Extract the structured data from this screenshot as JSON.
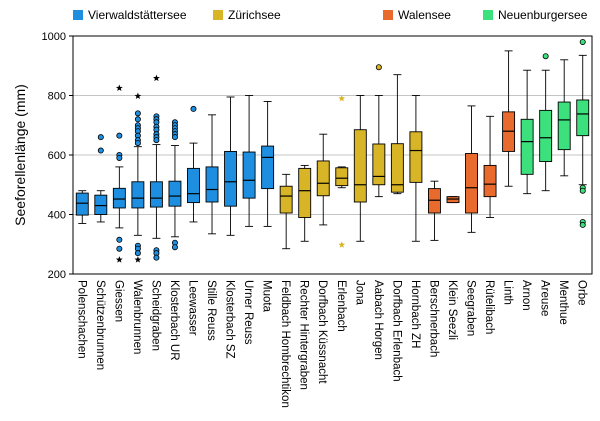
{
  "chart_data": {
    "type": "boxplot",
    "title": "",
    "xlabel": "",
    "ylabel": "Seeforellenlänge (mm)",
    "ylim": [
      200,
      1000
    ],
    "yticks": [
      200,
      400,
      600,
      800,
      1000
    ],
    "grid": true,
    "legend_position": "top",
    "groups": [
      {
        "name": "Vierwaldstättersee",
        "color": "#1e8fe0"
      },
      {
        "name": "Zürichsee",
        "color": "#d8b526"
      },
      {
        "name": "Walensee",
        "color": "#e86a2d"
      },
      {
        "name": "Neuenburgersee",
        "color": "#3ce07c"
      }
    ],
    "boxes": [
      {
        "label": "Polenschachen",
        "group": "Vierwaldstättersee",
        "whisker_low": 370,
        "q1": 398,
        "median": 438,
        "q3": 472,
        "whisker_high": 480,
        "outliers": [],
        "extremes": []
      },
      {
        "label": "Schützenbrunnen",
        "group": "Vierwaldstättersee",
        "whisker_low": 375,
        "q1": 400,
        "median": 430,
        "q3": 465,
        "whisker_high": 480,
        "outliers": [
          660,
          615
        ],
        "extremes": []
      },
      {
        "label": "Giessen",
        "group": "Vierwaldstättersee",
        "whisker_low": 355,
        "q1": 422,
        "median": 452,
        "q3": 488,
        "whisker_high": 560,
        "outliers": [
          665,
          600,
          590,
          315,
          285
        ],
        "extremes": [
          825,
          248
        ]
      },
      {
        "label": "Walenbrunnen",
        "group": "Vierwaldstättersee",
        "whisker_low": 330,
        "q1": 422,
        "median": 455,
        "q3": 510,
        "whisker_high": 628,
        "outliers": [
          740,
          720,
          700,
          690,
          680,
          665,
          650,
          640,
          295,
          285,
          270
        ],
        "extremes": [
          798,
          248
        ]
      },
      {
        "label": "Scheidgraben",
        "group": "Vierwaldstättersee",
        "whisker_low": 320,
        "q1": 425,
        "median": 455,
        "q3": 510,
        "whisker_high": 635,
        "outliers": [
          730,
          720,
          710,
          695,
          685,
          670,
          660,
          650,
          280,
          270,
          255
        ],
        "extremes": [
          858
        ]
      },
      {
        "label": "Klosterbach UR",
        "group": "Vierwaldstättersee",
        "whisker_low": 325,
        "q1": 428,
        "median": 462,
        "q3": 512,
        "whisker_high": 632,
        "outliers": [
          710,
          700,
          690,
          680,
          670,
          660,
          305,
          290
        ],
        "extremes": []
      },
      {
        "label": "Leewasser",
        "group": "Vierwaldstättersee",
        "whisker_low": 375,
        "q1": 440,
        "median": 470,
        "q3": 555,
        "whisker_high": 640,
        "outliers": [
          755
        ],
        "extremes": []
      },
      {
        "label": "Stille Reuss",
        "group": "Vierwaldstättersee",
        "whisker_low": 335,
        "q1": 442,
        "median": 484,
        "q3": 560,
        "whisker_high": 735,
        "outliers": [],
        "extremes": []
      },
      {
        "label": "Klosterbach SZ",
        "group": "Vierwaldstättersee",
        "whisker_low": 330,
        "q1": 428,
        "median": 510,
        "q3": 612,
        "whisker_high": 795,
        "outliers": [],
        "extremes": []
      },
      {
        "label": "Urner Reuss",
        "group": "Vierwaldstättersee",
        "whisker_low": 360,
        "q1": 455,
        "median": 515,
        "q3": 610,
        "whisker_high": 800,
        "outliers": [],
        "extremes": []
      },
      {
        "label": "Muota",
        "group": "Vierwaldstättersee",
        "whisker_low": 360,
        "q1": 487,
        "median": 592,
        "q3": 630,
        "whisker_high": 780,
        "outliers": [],
        "extremes": []
      },
      {
        "label": "Feldbach Hombrechtikon",
        "group": "Zürichsee",
        "whisker_low": 285,
        "q1": 405,
        "median": 462,
        "q3": 495,
        "whisker_high": 535,
        "outliers": [],
        "extremes": []
      },
      {
        "label": "Rechter Hintergraben",
        "group": "Zürichsee",
        "whisker_low": 310,
        "q1": 390,
        "median": 480,
        "q3": 555,
        "whisker_high": 565,
        "outliers": [],
        "extremes": []
      },
      {
        "label": "Dorfbach Küssnacht",
        "group": "Zürichsee",
        "whisker_low": 365,
        "q1": 463,
        "median": 505,
        "q3": 580,
        "whisker_high": 670,
        "outliers": [],
        "extremes": []
      },
      {
        "label": "Erlenbach",
        "group": "Zürichsee",
        "whisker_low": 490,
        "q1": 497,
        "median": 522,
        "q3": 557,
        "whisker_high": 560,
        "outliers": [],
        "extremes": [
          790,
          298
        ]
      },
      {
        "label": "Jona",
        "group": "Zürichsee",
        "whisker_low": 310,
        "q1": 442,
        "median": 500,
        "q3": 685,
        "whisker_high": 800,
        "outliers": [],
        "extremes": []
      },
      {
        "label": "Aabach Horgen",
        "group": "Zürichsee",
        "whisker_low": 460,
        "q1": 500,
        "median": 528,
        "q3": 637,
        "whisker_high": 800,
        "outliers": [
          895
        ],
        "extremes": []
      },
      {
        "label": "Dorfbach Erlenbach",
        "group": "Zürichsee",
        "whisker_low": 470,
        "q1": 475,
        "median": 500,
        "q3": 638,
        "whisker_high": 870,
        "outliers": [],
        "extremes": []
      },
      {
        "label": "Hornbach ZH",
        "group": "Zürichsee",
        "whisker_low": 310,
        "q1": 508,
        "median": 615,
        "q3": 678,
        "whisker_high": 800,
        "outliers": [],
        "extremes": []
      },
      {
        "label": "Berschnerbach",
        "group": "Walensee",
        "whisker_low": 313,
        "q1": 405,
        "median": 448,
        "q3": 487,
        "whisker_high": 512,
        "outliers": [],
        "extremes": []
      },
      {
        "label": "Klein Seezli",
        "group": "Walensee",
        "whisker_low": 440,
        "q1": 440,
        "median": 452,
        "q3": 460,
        "whisker_high": 460,
        "outliers": [],
        "extremes": []
      },
      {
        "label": "Seegraben",
        "group": "Walensee",
        "whisker_low": 340,
        "q1": 405,
        "median": 490,
        "q3": 605,
        "whisker_high": 765,
        "outliers": [],
        "extremes": []
      },
      {
        "label": "Rütelibach",
        "group": "Walensee",
        "whisker_low": 390,
        "q1": 460,
        "median": 502,
        "q3": 565,
        "whisker_high": 730,
        "outliers": [],
        "extremes": []
      },
      {
        "label": "Linth",
        "group": "Walensee",
        "whisker_low": 495,
        "q1": 612,
        "median": 680,
        "q3": 745,
        "whisker_high": 950,
        "outliers": [],
        "extremes": []
      },
      {
        "label": "Arnon",
        "group": "Neuenburgersee",
        "whisker_low": 470,
        "q1": 535,
        "median": 645,
        "q3": 720,
        "whisker_high": 885,
        "outliers": [],
        "extremes": []
      },
      {
        "label": "Areuse",
        "group": "Neuenburgersee",
        "whisker_low": 480,
        "q1": 578,
        "median": 658,
        "q3": 750,
        "whisker_high": 885,
        "outliers": [
          932
        ],
        "extremes": []
      },
      {
        "label": "Menthue",
        "group": "Neuenburgersee",
        "whisker_low": 530,
        "q1": 618,
        "median": 718,
        "q3": 778,
        "whisker_high": 920,
        "outliers": [],
        "extremes": []
      },
      {
        "label": "Orbe",
        "group": "Neuenburgersee",
        "whisker_low": 500,
        "q1": 665,
        "median": 738,
        "q3": 785,
        "whisker_high": 935,
        "outliers": [
          980,
          490,
          480,
          375,
          365
        ],
        "extremes": []
      }
    ]
  }
}
